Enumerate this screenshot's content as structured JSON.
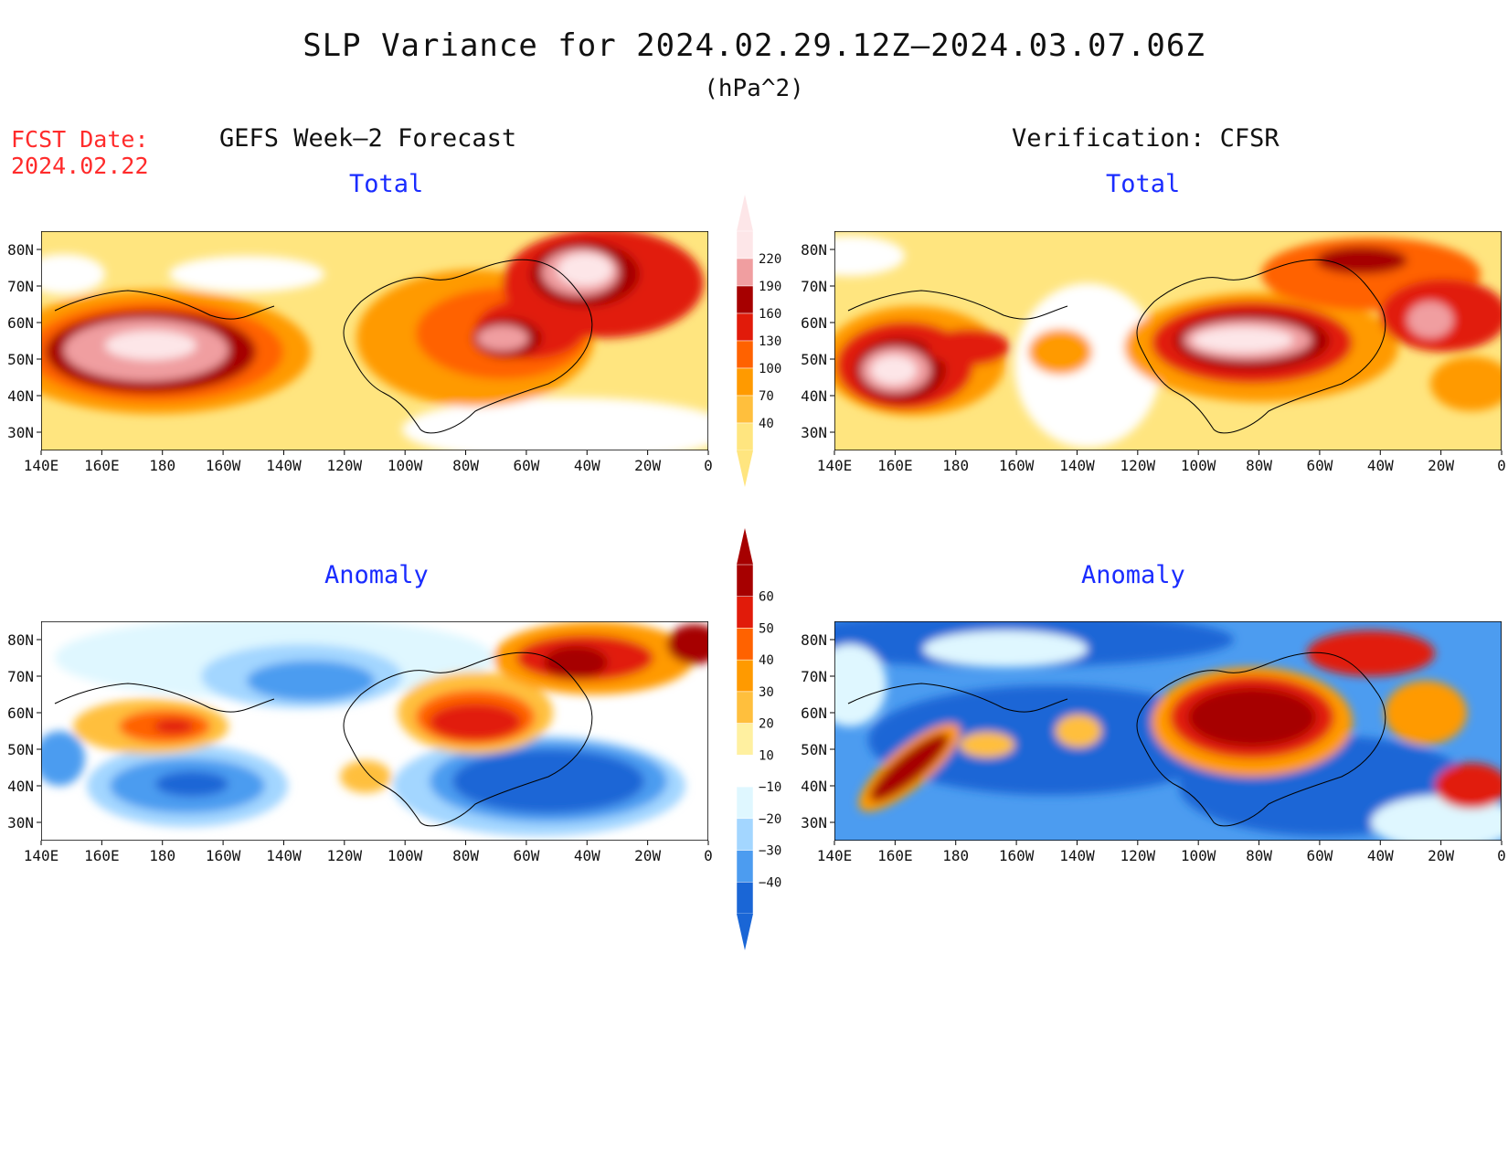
{
  "title": "SLP Variance for 2024.02.29.12Z–2024.03.07.06Z",
  "units": "(hPa^2)",
  "fcst_label": "FCST Date:",
  "fcst_date": "2024.02.22",
  "left_header": "GEFS Week–2 Forecast",
  "right_header": "Verification: CFSR",
  "panels": [
    {
      "id": "gefs_total",
      "label": "Total"
    },
    {
      "id": "cfsr_total",
      "label": "Total"
    },
    {
      "id": "gefs_anom",
      "label": "Anomaly"
    },
    {
      "id": "cfsr_anom",
      "label": "Anomaly"
    }
  ],
  "lat_labels": [
    "80N",
    "70N",
    "60N",
    "50N",
    "40N",
    "30N"
  ],
  "lon_labels": [
    "140E",
    "160E",
    "180",
    "160W",
    "140W",
    "120W",
    "100W",
    "80W",
    "60W",
    "40W",
    "20W",
    "0"
  ],
  "total_colorbar": {
    "levels": [
      "40",
      "70",
      "100",
      "130",
      "160",
      "190",
      "220"
    ],
    "colors": [
      "#ffe57f",
      "#ffbf3d",
      "#ff9a00",
      "#ff6200",
      "#e11b0a",
      "#a60000",
      "#f09ea0",
      "#fde6e8"
    ]
  },
  "anomaly_colorbar": {
    "levels": [
      "60",
      "50",
      "40",
      "30",
      "20",
      "10",
      "−10",
      "−20",
      "−30",
      "−40"
    ],
    "colors": [
      "#a60000",
      "#e11b0a",
      "#ff6200",
      "#ff9a00",
      "#ffbf3d",
      "#fff0a0",
      "#ffffff",
      "#dff7ff",
      "#a3d6ff",
      "#4c9cf0",
      "#1a66d6"
    ]
  }
}
